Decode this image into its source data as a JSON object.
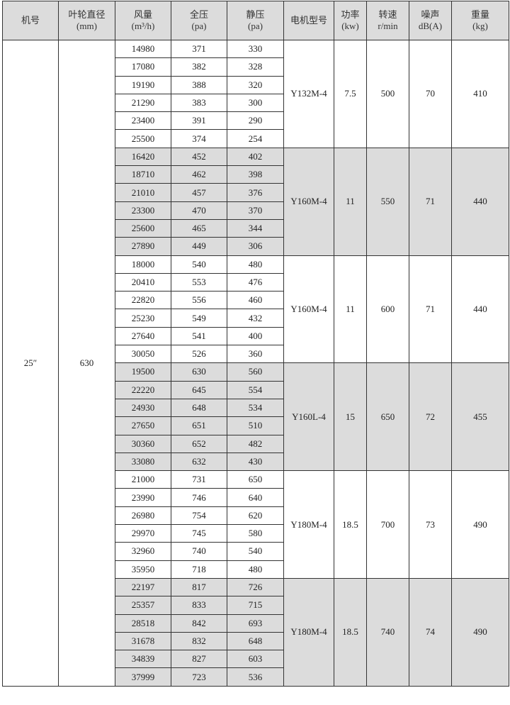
{
  "header": {
    "model_no": "机号",
    "impeller_dia": [
      "叶轮直径",
      "(mm)"
    ],
    "airflow": [
      "风量",
      "(m³/h)"
    ],
    "total_pressure": [
      "全压",
      "(pa)"
    ],
    "static_pressure": [
      "静压",
      "(pa)"
    ],
    "motor_model": "电机型号",
    "power": [
      "功率",
      "(kw)"
    ],
    "speed": [
      "转速",
      "r/min"
    ],
    "noise": [
      "噪声",
      "dB(A)"
    ],
    "weight": [
      "重量",
      "(kg)"
    ]
  },
  "model_no": "25″",
  "impeller_dia": "630",
  "groups": [
    {
      "motor": "Y132M-4",
      "power": "7.5",
      "speed": "500",
      "noise": "70",
      "weight": "410",
      "shaded": false,
      "rows": [
        [
          "14980",
          "371",
          "330"
        ],
        [
          "17080",
          "382",
          "328"
        ],
        [
          "19190",
          "388",
          "320"
        ],
        [
          "21290",
          "383",
          "300"
        ],
        [
          "23400",
          "391",
          "290"
        ],
        [
          "25500",
          "374",
          "254"
        ]
      ]
    },
    {
      "motor": "Y160M-4",
      "power": "11",
      "speed": "550",
      "noise": "71",
      "weight": "440",
      "shaded": true,
      "rows": [
        [
          "16420",
          "452",
          "402"
        ],
        [
          "18710",
          "462",
          "398"
        ],
        [
          "21010",
          "457",
          "376"
        ],
        [
          "23300",
          "470",
          "370"
        ],
        [
          "25600",
          "465",
          "344"
        ],
        [
          "27890",
          "449",
          "306"
        ]
      ]
    },
    {
      "motor": "Y160M-4",
      "power": "11",
      "speed": "600",
      "noise": "71",
      "weight": "440",
      "shaded": false,
      "rows": [
        [
          "18000",
          "540",
          "480"
        ],
        [
          "20410",
          "553",
          "476"
        ],
        [
          "22820",
          "556",
          "460"
        ],
        [
          "25230",
          "549",
          "432"
        ],
        [
          "27640",
          "541",
          "400"
        ],
        [
          "30050",
          "526",
          "360"
        ]
      ]
    },
    {
      "motor": "Y160L-4",
      "power": "15",
      "speed": "650",
      "noise": "72",
      "weight": "455",
      "shaded": true,
      "rows": [
        [
          "19500",
          "630",
          "560"
        ],
        [
          "22220",
          "645",
          "554"
        ],
        [
          "24930",
          "648",
          "534"
        ],
        [
          "27650",
          "651",
          "510"
        ],
        [
          "30360",
          "652",
          "482"
        ],
        [
          "33080",
          "632",
          "430"
        ]
      ]
    },
    {
      "motor": "Y180M-4",
      "power": "18.5",
      "speed": "700",
      "noise": "73",
      "weight": "490",
      "shaded": false,
      "rows": [
        [
          "21000",
          "731",
          "650"
        ],
        [
          "23990",
          "746",
          "640"
        ],
        [
          "26980",
          "754",
          "620"
        ],
        [
          "29970",
          "745",
          "580"
        ],
        [
          "32960",
          "740",
          "540"
        ],
        [
          "35950",
          "718",
          "480"
        ]
      ]
    },
    {
      "motor": "Y180M-4",
      "power": "18.5",
      "speed": "740",
      "noise": "74",
      "weight": "490",
      "shaded": true,
      "rows": [
        [
          "22197",
          "817",
          "726"
        ],
        [
          "25357",
          "833",
          "715"
        ],
        [
          "28518",
          "842",
          "693"
        ],
        [
          "31678",
          "832",
          "648"
        ],
        [
          "34839",
          "827",
          "603"
        ],
        [
          "37999",
          "723",
          "536"
        ]
      ]
    }
  ]
}
